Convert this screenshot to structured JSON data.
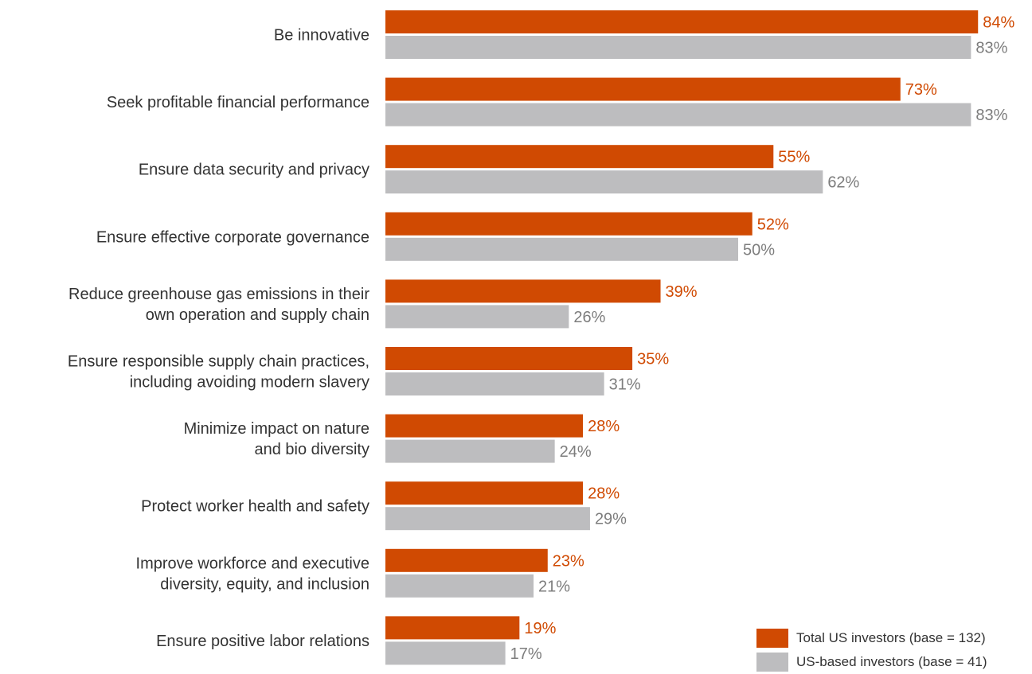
{
  "chart_data": {
    "type": "bar",
    "orientation": "horizontal",
    "categories": [
      [
        "Be innovative"
      ],
      [
        "Seek profitable financial performance"
      ],
      [
        "Ensure data security and privacy"
      ],
      [
        "Ensure effective corporate governance"
      ],
      [
        "Reduce greenhouse gas emissions in their",
        "own operation and supply chain"
      ],
      [
        "Ensure responsible supply chain practices,",
        "including avoiding modern slavery"
      ],
      [
        "Minimize impact on nature",
        "and bio diversity"
      ],
      [
        "Protect worker health and safety"
      ],
      [
        "Improve workforce and executive",
        "diversity, equity, and inclusion"
      ],
      [
        "Ensure positive labor relations"
      ]
    ],
    "series": [
      {
        "name": "Total US investors (base = 132)",
        "color": "#d04a02",
        "label_color": "#d04a02",
        "values": [
          84,
          73,
          55,
          52,
          39,
          35,
          28,
          28,
          23,
          19
        ],
        "labels": [
          "84%",
          "73%",
          "55%",
          "52%",
          "39%",
          "35%",
          "28%",
          "28%",
          "23%",
          "19%"
        ]
      },
      {
        "name": "US-based investors (base = 41)",
        "color": "#bdbdbf",
        "label_color": "#7d7d7d",
        "values": [
          83,
          83,
          62,
          50,
          26,
          31,
          24,
          29,
          21,
          17
        ],
        "labels": [
          "83%",
          "83%",
          "62%",
          "50%",
          "26%",
          "31%",
          "24%",
          "29%",
          "21%",
          "17%"
        ]
      }
    ],
    "legend_position": "bottom-right",
    "grid": false
  }
}
